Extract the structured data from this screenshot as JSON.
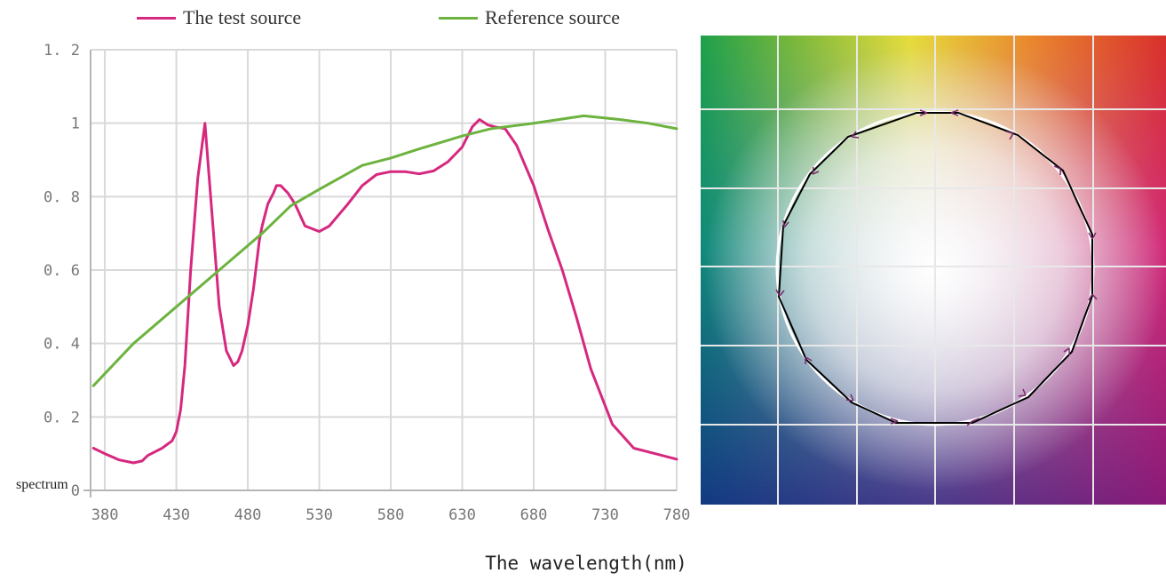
{
  "chart_data": {
    "type": "line",
    "xlabel": "The wavelength(nm)",
    "ylabel": "spectrum",
    "xlim": [
      370,
      780
    ],
    "ylim": [
      0,
      1.2
    ],
    "x_ticks": [
      "380",
      "430",
      "480",
      "530",
      "580",
      "630",
      "680",
      "730",
      "780"
    ],
    "y_ticks": [
      "0",
      "0.2",
      "0.4",
      "0.6",
      "0.8",
      "1",
      "1.2"
    ],
    "y_tick_labels": [
      "0",
      "0. 2",
      "0. 4",
      "0. 6",
      "0. 8",
      "1",
      "1. 2"
    ],
    "grid": true,
    "legend_position": "top",
    "series": [
      {
        "name": "The test source",
        "color": "#d6287f",
        "x": [
          372,
          380,
          390,
          400,
          406,
          410,
          420,
          427,
          430,
          433,
          436,
          440,
          445,
          450,
          453,
          460,
          465,
          470,
          473,
          476,
          480,
          484,
          488,
          490,
          494,
          498,
          500,
          503,
          508,
          513,
          520,
          530,
          537,
          550,
          560,
          570,
          580,
          590,
          600,
          610,
          620,
          630,
          637,
          642,
          648,
          653,
          660,
          668,
          680,
          690,
          700,
          710,
          720,
          735,
          750,
          765,
          780
        ],
        "y": [
          0.115,
          0.1,
          0.083,
          0.075,
          0.08,
          0.095,
          0.115,
          0.135,
          0.16,
          0.22,
          0.34,
          0.6,
          0.85,
          1.0,
          0.85,
          0.5,
          0.38,
          0.34,
          0.35,
          0.38,
          0.45,
          0.55,
          0.68,
          0.72,
          0.78,
          0.81,
          0.83,
          0.83,
          0.81,
          0.78,
          0.72,
          0.705,
          0.72,
          0.78,
          0.83,
          0.86,
          0.868,
          0.868,
          0.862,
          0.87,
          0.895,
          0.935,
          0.99,
          1.01,
          0.995,
          0.99,
          0.985,
          0.94,
          0.83,
          0.71,
          0.6,
          0.47,
          0.33,
          0.18,
          0.115,
          0.1,
          0.085
        ]
      },
      {
        "name": "Reference source",
        "color": "#6db33f",
        "x": [
          372,
          400,
          430,
          460,
          490,
          510,
          530,
          560,
          580,
          600,
          630,
          650,
          680,
          715,
          740,
          760,
          780
        ],
        "y": [
          0.285,
          0.4,
          0.5,
          0.6,
          0.7,
          0.775,
          0.82,
          0.885,
          0.905,
          0.93,
          0.965,
          0.985,
          1.0,
          1.02,
          1.01,
          1.0,
          0.985
        ]
      }
    ]
  },
  "color_panel": {
    "gamut_polygon_color": "#000000",
    "reference_circle_color": "#ffffff",
    "arrow_color": "#7a2a6a"
  }
}
